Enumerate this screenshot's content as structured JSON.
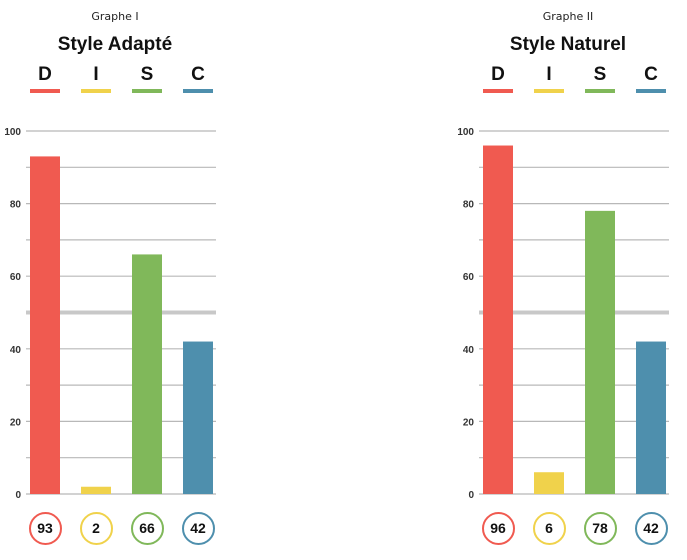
{
  "colors": {
    "D": "#f05a50",
    "I": "#f0d24b",
    "S": "#80b85a",
    "C": "#4e8fad",
    "grid": "#b8b8b8",
    "midline": "#c8c8c8"
  },
  "chart_data": [
    {
      "type": "bar",
      "caption": "Graphe I",
      "title": "Style Adapté",
      "categories": [
        "D",
        "I",
        "S",
        "C"
      ],
      "values": [
        93,
        2,
        66,
        42
      ],
      "ylim": [
        0,
        100
      ],
      "yticks": [
        0,
        20,
        40,
        60,
        80,
        100
      ],
      "reference_line": 50,
      "grid": true
    },
    {
      "type": "bar",
      "caption": "Graphe II",
      "title": "Style Naturel",
      "categories": [
        "D",
        "I",
        "S",
        "C"
      ],
      "values": [
        96,
        6,
        78,
        42
      ],
      "ylim": [
        0,
        100
      ],
      "yticks": [
        0,
        20,
        40,
        60,
        80,
        100
      ],
      "reference_line": 50,
      "grid": true
    }
  ]
}
